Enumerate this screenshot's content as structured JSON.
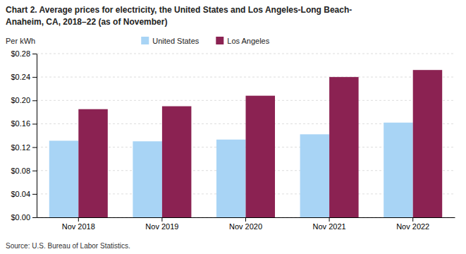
{
  "chart_data": {
    "type": "bar",
    "title": [
      "Chart 2. Average prices for electricity, the United States and Los Angeles-Long Beach-",
      "Anaheim, CA, 2018–22 (as of November)"
    ],
    "ylabel": "Per kWh",
    "annotations": [
      "Source: U.S. Bureau of Labor Statistics."
    ],
    "categories": [
      "Nov 2018",
      "Nov 2019",
      "Nov 2020",
      "Nov 2021",
      "Nov 2022"
    ],
    "series": [
      {
        "name": "United States",
        "color": "#a8d4f5",
        "values": [
          0.131,
          0.13,
          0.133,
          0.142,
          0.162
        ]
      },
      {
        "name": "Los Angeles",
        "color": "#8B2252",
        "values": [
          0.185,
          0.19,
          0.208,
          0.24,
          0.252
        ]
      }
    ],
    "ylim": [
      0,
      0.28
    ],
    "yticks": [
      {
        "value": 0.0,
        "label": "$0.00"
      },
      {
        "value": 0.04,
        "label": "$0.04"
      },
      {
        "value": 0.08,
        "label": "$0.08"
      },
      {
        "value": 0.12,
        "label": "$0.12"
      },
      {
        "value": 0.16,
        "label": "$0.16"
      },
      {
        "value": 0.2,
        "label": "$0.20"
      },
      {
        "value": 0.24,
        "label": "$0.24"
      },
      {
        "value": 0.28,
        "label": "$0.28"
      }
    ],
    "grid": true,
    "legend": "top"
  }
}
